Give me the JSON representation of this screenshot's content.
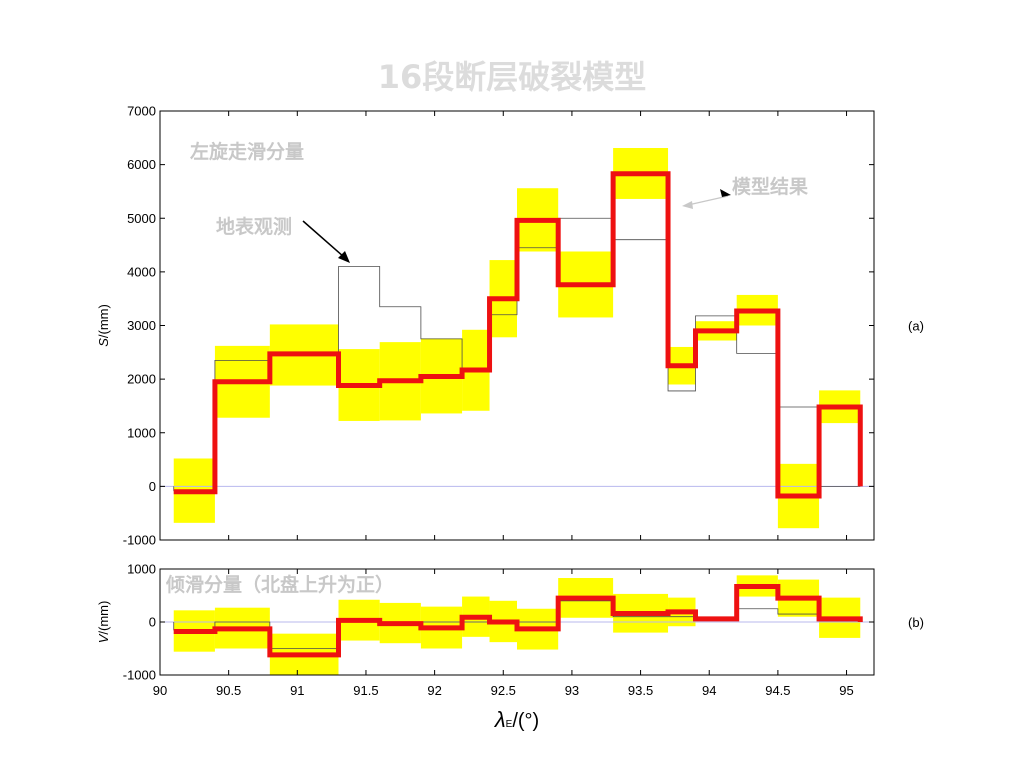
{
  "title": "16段断层破裂模型",
  "chart_data": [
    {
      "type": "step",
      "panel_label": "(a)",
      "ylabel_var": "S",
      "ylabel_unit": "/(mm)",
      "ylim": [
        -1000,
        7000
      ],
      "yticks": [
        -1000,
        0,
        1000,
        2000,
        3000,
        4000,
        5000,
        6000,
        7000
      ],
      "xlim": [
        90,
        95.2
      ],
      "annotations": {
        "component": "左旋走滑分量",
        "observed": "地表观测",
        "model": "模型结果"
      },
      "model_steps": [
        {
          "x0": 90.1,
          "x1": 90.4,
          "y": -100,
          "lo": -680,
          "hi": 520
        },
        {
          "x0": 90.4,
          "x1": 90.8,
          "y": 1950,
          "lo": 1280,
          "hi": 2620
        },
        {
          "x0": 90.8,
          "x1": 91.3,
          "y": 2470,
          "lo": 1880,
          "hi": 3020
        },
        {
          "x0": 91.3,
          "x1": 91.6,
          "y": 1880,
          "lo": 1220,
          "hi": 2560
        },
        {
          "x0": 91.6,
          "x1": 91.9,
          "y": 1970,
          "lo": 1230,
          "hi": 2690
        },
        {
          "x0": 91.9,
          "x1": 92.2,
          "y": 2050,
          "lo": 1360,
          "hi": 2760
        },
        {
          "x0": 92.2,
          "x1": 92.4,
          "y": 2170,
          "lo": 1410,
          "hi": 2920
        },
        {
          "x0": 92.4,
          "x1": 92.6,
          "y": 3500,
          "lo": 2780,
          "hi": 4220
        },
        {
          "x0": 92.6,
          "x1": 92.9,
          "y": 4960,
          "lo": 4380,
          "hi": 5560
        },
        {
          "x0": 92.9,
          "x1": 93.3,
          "y": 3760,
          "lo": 3150,
          "hi": 4380
        },
        {
          "x0": 93.3,
          "x1": 93.7,
          "y": 5830,
          "lo": 5360,
          "hi": 6310
        },
        {
          "x0": 93.7,
          "x1": 93.9,
          "y": 2250,
          "lo": 1900,
          "hi": 2600
        },
        {
          "x0": 93.9,
          "x1": 94.2,
          "y": 2900,
          "lo": 2720,
          "hi": 3080
        },
        {
          "x0": 94.2,
          "x1": 94.5,
          "y": 3270,
          "lo": 3000,
          "hi": 3570
        },
        {
          "x0": 94.5,
          "x1": 94.8,
          "y": -180,
          "lo": -780,
          "hi": 420
        },
        {
          "x0": 94.8,
          "x1": 95.1,
          "y": 1480,
          "lo": 1180,
          "hi": 1790
        }
      ],
      "observed_steps": [
        {
          "x0": 90.1,
          "x1": 90.4,
          "y": -80
        },
        {
          "x0": 90.4,
          "x1": 90.8,
          "y": 2350
        },
        {
          "x0": 90.8,
          "x1": 91.3,
          "y": 2450
        },
        {
          "x0": 91.3,
          "x1": 91.6,
          "y": 4100
        },
        {
          "x0": 91.6,
          "x1": 91.9,
          "y": 3350
        },
        {
          "x0": 91.9,
          "x1": 92.2,
          "y": 2750
        },
        {
          "x0": 92.2,
          "x1": 92.4,
          "y": 2200
        },
        {
          "x0": 92.4,
          "x1": 92.6,
          "y": 3200
        },
        {
          "x0": 92.6,
          "x1": 92.9,
          "y": 4450
        },
        {
          "x0": 92.9,
          "x1": 93.3,
          "y": 5000
        },
        {
          "x0": 93.3,
          "x1": 93.7,
          "y": 4600
        },
        {
          "x0": 93.7,
          "x1": 93.9,
          "y": 1780
        },
        {
          "x0": 93.9,
          "x1": 94.2,
          "y": 3180
        },
        {
          "x0": 94.2,
          "x1": 94.5,
          "y": 2480
        },
        {
          "x0": 94.5,
          "x1": 94.8,
          "y": 1480
        },
        {
          "x0": 94.8,
          "x1": 95.1,
          "y": 0
        }
      ]
    },
    {
      "type": "step",
      "panel_label": "(b)",
      "ylabel_var": "V",
      "ylabel_unit": "/(mm)",
      "ylim": [
        -1000,
        1000
      ],
      "yticks": [
        -1000,
        0,
        1000
      ],
      "xlim": [
        90,
        95.2
      ],
      "xticks": [
        90,
        90.5,
        91,
        91.5,
        92,
        92.5,
        93,
        93.5,
        94,
        94.5,
        95
      ],
      "xticklabels": [
        "90",
        "90.5",
        "91",
        "91.5",
        "92",
        "92.5",
        "93",
        "93.5",
        "94",
        "94.5",
        "95"
      ],
      "xlabel_var": "λ",
      "xlabel_sub": "E",
      "xlabel_unit": "/(°)",
      "annotations": {
        "component": "倾滑分量（北盘上升为正）"
      },
      "model_steps": [
        {
          "x0": 90.1,
          "x1": 90.4,
          "y": -180,
          "lo": -560,
          "hi": 220
        },
        {
          "x0": 90.4,
          "x1": 90.8,
          "y": -130,
          "lo": -500,
          "hi": 270
        },
        {
          "x0": 90.8,
          "x1": 91.3,
          "y": -620,
          "lo": -1000,
          "hi": -220
        },
        {
          "x0": 91.3,
          "x1": 91.6,
          "y": 30,
          "lo": -350,
          "hi": 420
        },
        {
          "x0": 91.6,
          "x1": 91.9,
          "y": -30,
          "lo": -400,
          "hi": 360
        },
        {
          "x0": 91.9,
          "x1": 92.2,
          "y": -110,
          "lo": -500,
          "hi": 290
        },
        {
          "x0": 92.2,
          "x1": 92.4,
          "y": 90,
          "lo": -280,
          "hi": 480
        },
        {
          "x0": 92.4,
          "x1": 92.6,
          "y": 0,
          "lo": -380,
          "hi": 400
        },
        {
          "x0": 92.6,
          "x1": 92.9,
          "y": -130,
          "lo": -520,
          "hi": 250
        },
        {
          "x0": 92.9,
          "x1": 93.3,
          "y": 450,
          "lo": 80,
          "hi": 830
        },
        {
          "x0": 93.3,
          "x1": 93.7,
          "y": 160,
          "lo": -200,
          "hi": 530
        },
        {
          "x0": 93.7,
          "x1": 93.9,
          "y": 190,
          "lo": -80,
          "hi": 460
        },
        {
          "x0": 93.9,
          "x1": 94.2,
          "y": 60,
          "lo": 60,
          "hi": 60
        },
        {
          "x0": 94.2,
          "x1": 94.5,
          "y": 670,
          "lo": 480,
          "hi": 880
        },
        {
          "x0": 94.5,
          "x1": 94.8,
          "y": 450,
          "lo": 100,
          "hi": 800
        },
        {
          "x0": 94.8,
          "x1": 95.1,
          "y": 60,
          "lo": -300,
          "hi": 460
        }
      ],
      "observed_steps": [
        {
          "x0": 90.1,
          "x1": 90.4,
          "y": -150
        },
        {
          "x0": 90.4,
          "x1": 90.8,
          "y": 0
        },
        {
          "x0": 90.8,
          "x1": 91.3,
          "y": -500
        },
        {
          "x0": 91.3,
          "x1": 91.6,
          "y": 0
        },
        {
          "x0": 91.6,
          "x1": 91.9,
          "y": 0
        },
        {
          "x0": 91.9,
          "x1": 92.2,
          "y": 0
        },
        {
          "x0": 92.2,
          "x1": 92.4,
          "y": 0
        },
        {
          "x0": 92.4,
          "x1": 92.6,
          "y": 0
        },
        {
          "x0": 92.6,
          "x1": 92.9,
          "y": 0
        },
        {
          "x0": 92.9,
          "x1": 93.3,
          "y": 400
        },
        {
          "x0": 93.3,
          "x1": 93.7,
          "y": 100
        },
        {
          "x0": 93.7,
          "x1": 93.9,
          "y": 100
        },
        {
          "x0": 93.9,
          "x1": 94.2,
          "y": 60
        },
        {
          "x0": 94.2,
          "x1": 94.5,
          "y": 250
        },
        {
          "x0": 94.5,
          "x1": 94.8,
          "y": 150
        },
        {
          "x0": 94.8,
          "x1": 95.1,
          "y": 20
        }
      ]
    }
  ],
  "colors": {
    "model_line": "#ee1111",
    "band": "#ffff00",
    "observed_line": "#4d4d4d",
    "zero_line": "#b8b8ee",
    "annotation": "#c8c8c8"
  }
}
